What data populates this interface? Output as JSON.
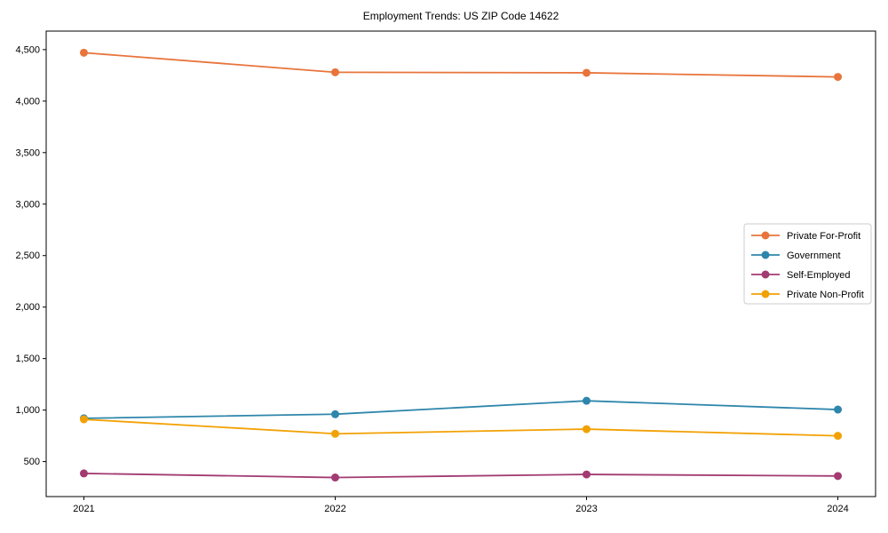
{
  "chart_data": {
    "type": "line",
    "title": "Employment Trends: US ZIP Code 14622",
    "x": [
      2021,
      2022,
      2023,
      2024
    ],
    "x_tick_labels": [
      "2021",
      "2022",
      "2023",
      "2024"
    ],
    "series": [
      {
        "name": "Private For-Profit",
        "color": "#e8743b",
        "values": [
          4470,
          4280,
          4275,
          4235
        ]
      },
      {
        "name": "Government",
        "color": "#2e86ab",
        "values": [
          920,
          960,
          1090,
          1005
        ]
      },
      {
        "name": "Self-Employed",
        "color": "#a23b72",
        "values": [
          385,
          345,
          375,
          360
        ]
      },
      {
        "name": "Private Non-Profit",
        "color": "#f2a104",
        "values": [
          910,
          770,
          815,
          750
        ]
      }
    ],
    "xlabel": "",
    "ylabel": "",
    "xlim": [
      2020.85,
      2024.15
    ],
    "ylim": [
      160,
      4680
    ],
    "yticks": [
      500,
      1000,
      1500,
      2000,
      2500,
      3000,
      3500,
      4000,
      4500
    ],
    "ytick_labels": [
      "500",
      "1,000",
      "1,500",
      "2,000",
      "2,500",
      "3,000",
      "3,500",
      "4,000",
      "4,500"
    ],
    "grid": false,
    "marker": "circle",
    "line_width": 1.8,
    "marker_radius": 4.5,
    "legend": {
      "position": "center right",
      "border_color": "#cccccc",
      "entries": [
        "Private For-Profit",
        "Government",
        "Self-Employed",
        "Private Non-Profit"
      ]
    },
    "axis_color": "#000000",
    "background_color": "#ffffff"
  }
}
